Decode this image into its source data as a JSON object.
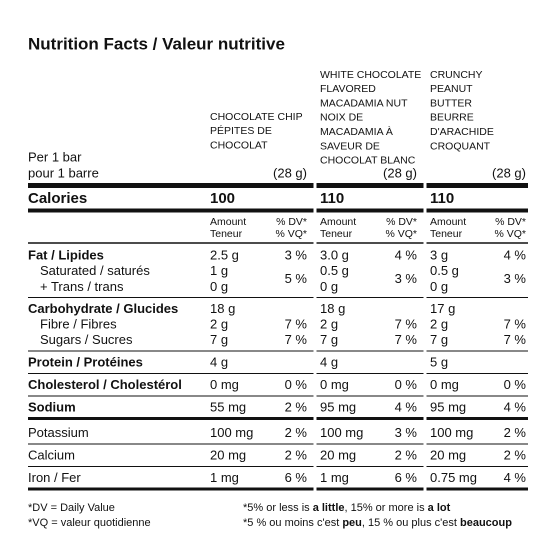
{
  "title": "Nutrition Facts / Valeur nutritive",
  "serving": [
    "Per 1 bar",
    "pour 1 barre"
  ],
  "products": [
    {
      "name": [
        "CHOCOLATE CHIP",
        "PÉPITES DE",
        "CHOCOLAT"
      ],
      "size": "(28 g)",
      "calories": "100"
    },
    {
      "name": [
        "WHITE CHOCOLATE",
        "FLAVORED",
        "MACADAMIA NUT",
        "NOIX DE",
        "MACADAMIA À",
        "SAVEUR DE",
        "CHOCOLAT BLANC"
      ],
      "size": "(28 g)",
      "calories": "110"
    },
    {
      "name": [
        "CRUNCHY",
        "PEANUT",
        "BUTTER",
        "BEURRE",
        "D'ARACHIDE",
        "CROQUANT"
      ],
      "size": "(28 g)",
      "calories": "110"
    }
  ],
  "calories_label": "Calories",
  "amount_header": [
    "Amount",
    "Teneur"
  ],
  "dv_header": [
    "% DV*",
    "% VQ*"
  ],
  "sections": [
    [
      {
        "label": "Fat / Lipides",
        "bold": true,
        "amounts": [
          "2.5 g",
          "3.0 g",
          "3 g"
        ],
        "dv": [
          "3 %",
          "4 %",
          "4 %"
        ]
      },
      {
        "label": [
          "Saturated / saturés",
          "+ Trans / trans"
        ],
        "sub": true,
        "amounts": [
          [
            "1 g",
            "0 g"
          ],
          [
            "0.5 g",
            "0 g"
          ],
          [
            "0.5 g",
            "0 g"
          ]
        ],
        "dv": [
          "5 %",
          "3 %",
          "3 %"
        ]
      }
    ],
    [
      {
        "label": "Carbohydrate / Glucides",
        "bold": true,
        "amounts": [
          "18 g",
          "18 g",
          "17 g"
        ]
      },
      {
        "label": "Fibre / Fibres",
        "sub": true,
        "amounts": [
          "2 g",
          "2 g",
          "2 g"
        ],
        "dv": [
          "7 %",
          "7 %",
          "7 %"
        ]
      },
      {
        "label": "Sugars / Sucres",
        "sub": true,
        "amounts": [
          "7 g",
          "7 g",
          "7 g"
        ],
        "dv": [
          "7 %",
          "7 %",
          "7 %"
        ]
      }
    ],
    [
      {
        "label": "Protein / Protéines",
        "bold": true,
        "amounts": [
          "4 g",
          "4 g",
          "5 g"
        ]
      }
    ],
    [
      {
        "label": "Cholesterol / Cholestérol",
        "bold": true,
        "amounts": [
          "0 mg",
          "0 mg",
          "0 mg"
        ],
        "dv": [
          "0 %",
          "0 %",
          "0 %"
        ]
      }
    ],
    [
      {
        "label": "Sodium",
        "bold": true,
        "amounts": [
          "55 mg",
          "95 mg",
          "95 mg"
        ],
        "dv": [
          "2 %",
          "4 %",
          "4 %"
        ]
      }
    ],
    [
      {
        "label": "Potassium",
        "amounts": [
          "100 mg",
          "100 mg",
          "100 mg"
        ],
        "dv": [
          "2 %",
          "3 %",
          "2 %"
        ]
      }
    ],
    [
      {
        "label": "Calcium",
        "amounts": [
          "20 mg",
          "20 mg",
          "20 mg"
        ],
        "dv": [
          "2 %",
          "2 %",
          "2 %"
        ]
      }
    ],
    [
      {
        "label": "Iron / Fer",
        "amounts": [
          "1 mg",
          "1 mg",
          "0.75 mg"
        ],
        "dv": [
          "6 %",
          "6 %",
          "4 %"
        ]
      }
    ]
  ],
  "footnotes": {
    "left": [
      "*DV = Daily Value",
      "*VQ = valeur quotidienne"
    ],
    "right": [
      [
        "*5% or less is ",
        "a little",
        ", 15% or more is ",
        "a lot"
      ],
      [
        "*5 % ou moins c'est ",
        "peu",
        ", 15 % ou plus c'est ",
        "beaucoup"
      ]
    ]
  }
}
